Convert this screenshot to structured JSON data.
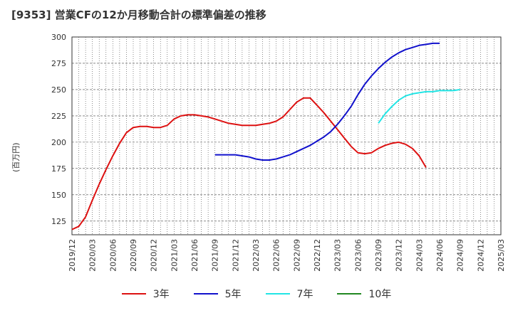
{
  "chart_data": {
    "type": "line",
    "title": "[9353]  営業CFの12か月移動合計の標準偏差の推移",
    "ylabel": "(百万円)",
    "ylim": [
      112,
      300
    ],
    "yticks": [
      125,
      150,
      175,
      200,
      225,
      250,
      275,
      300
    ],
    "x_labels": [
      "2019/12",
      "2020/03",
      "2020/06",
      "2020/09",
      "2020/12",
      "2021/03",
      "2021/06",
      "2021/09",
      "2021/12",
      "2022/03",
      "2022/06",
      "2022/09",
      "2022/12",
      "2023/03",
      "2023/06",
      "2023/09",
      "2023/12",
      "2024/03",
      "2024/06",
      "2024/09",
      "2024/12",
      "2025/03"
    ],
    "grid": true,
    "legend_position": "bottom",
    "series": [
      {
        "name": "3年",
        "color": "#dd1111",
        "start_index": 0,
        "values": [
          117,
          120,
          129,
          145,
          160,
          174,
          187,
          199,
          209,
          214,
          215,
          215,
          214,
          214,
          216,
          222,
          225,
          226,
          226,
          225,
          224,
          222,
          220,
          218,
          217,
          216,
          216,
          216,
          217,
          218,
          220,
          224,
          231,
          238,
          242,
          242,
          235,
          228,
          220,
          212,
          204,
          196,
          190,
          189,
          190,
          194,
          197,
          199,
          200,
          198,
          194,
          187,
          176
        ]
      },
      {
        "name": "5年",
        "color": "#1111cc",
        "start_index": 21,
        "values": [
          188,
          188,
          188,
          188,
          187,
          186,
          184,
          183,
          183,
          184,
          186,
          188,
          191,
          194,
          197,
          201,
          205,
          210,
          217,
          225,
          234,
          245,
          255,
          263,
          270,
          276,
          281,
          285,
          288,
          290,
          292,
          293,
          294,
          294
        ]
      },
      {
        "name": "7年",
        "color": "#22e5e5",
        "start_index": 45,
        "values": [
          218,
          227,
          234,
          240,
          244,
          246,
          247,
          248,
          248,
          249,
          249,
          249,
          250
        ]
      },
      {
        "name": "10年",
        "color": "#228822",
        "start_index": 0,
        "values": []
      }
    ]
  }
}
